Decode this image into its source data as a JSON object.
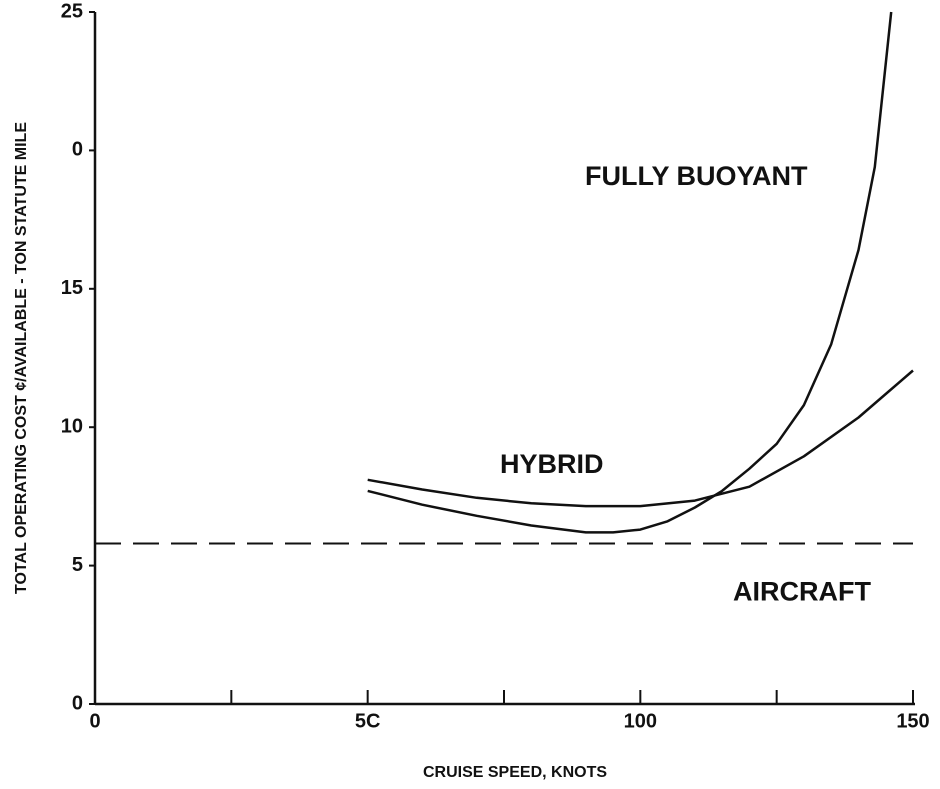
{
  "chart_data": {
    "type": "line",
    "xlabel": "CRUISE SPEED, KNOTS",
    "ylabel": "TOTAL OPERATING COST ¢/AVAILABLE - TON STATUTE MILE",
    "xlim": [
      0,
      150
    ],
    "ylim": [
      0,
      25
    ],
    "xticks": [
      0,
      {
        "value": 50,
        "label": "5C"
      },
      100,
      150
    ],
    "xminorticks": [
      25,
      75,
      125
    ],
    "yticks": [
      0,
      5,
      10,
      15,
      {
        "value": 20,
        "label": "0"
      },
      25
    ],
    "color": "#111111",
    "series": [
      {
        "name": "FULLY BUOYANT",
        "color": "#111111",
        "x": [
          50,
          60,
          70,
          80,
          90,
          95,
          100,
          105,
          110,
          115,
          120,
          125,
          130,
          135,
          140,
          143,
          146
        ],
        "values": [
          7.7,
          7.2,
          6.8,
          6.45,
          6.2,
          6.2,
          6.3,
          6.6,
          7.1,
          7.7,
          8.5,
          9.4,
          10.8,
          13.0,
          16.4,
          19.4,
          25
        ]
      },
      {
        "name": "HYBRID",
        "color": "#111111",
        "x": [
          50,
          60,
          70,
          80,
          90,
          100,
          110,
          120,
          130,
          140,
          150
        ],
        "values": [
          8.1,
          7.75,
          7.45,
          7.25,
          7.15,
          7.15,
          7.35,
          7.85,
          8.95,
          10.35,
          12.05
        ]
      }
    ],
    "reference_lines": [
      {
        "name": "AIRCRAFT",
        "value": 5.8,
        "style": "dashed"
      }
    ]
  }
}
